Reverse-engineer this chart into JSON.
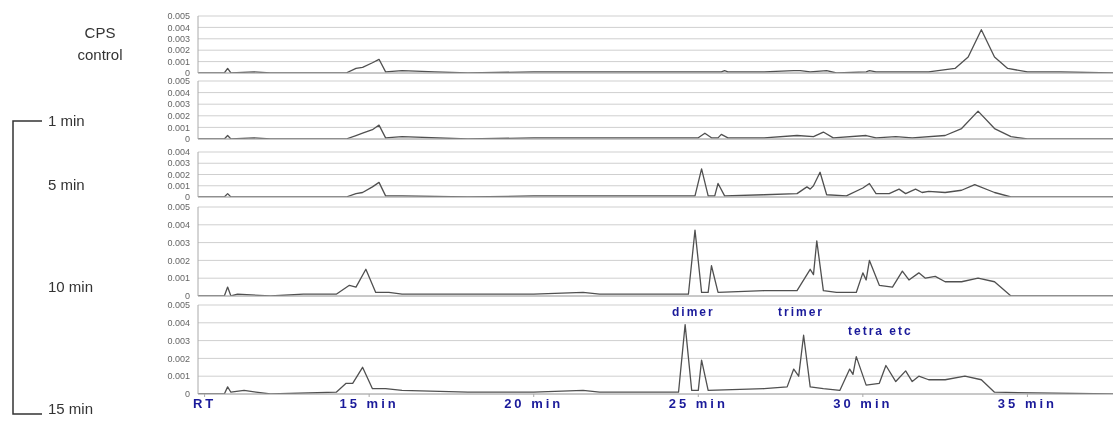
{
  "chart_data": [
    {
      "type": "line",
      "title": "CPS control",
      "color": "#505050",
      "xlim": [
        9.8,
        37.6
      ],
      "ylim": [
        0,
        0.005
      ],
      "yticks": [
        0,
        0.001,
        0.002,
        0.003,
        0.004,
        0.005
      ],
      "grid": "y",
      "tick_labels": "y",
      "x": [
        9.8,
        10.6,
        10.7,
        10.8,
        11.5,
        12,
        13,
        14.3,
        14.6,
        14.8,
        15.1,
        15.3,
        15.5,
        16,
        17,
        18,
        20,
        22,
        24,
        25.7,
        25.8,
        25.9,
        27,
        27.9,
        28.1,
        28.4,
        28.9,
        29.2,
        30.1,
        30.2,
        30.4,
        31,
        32,
        32.8,
        33.2,
        33.6,
        34,
        34.4,
        35,
        36,
        37.6
      ],
      "values": [
        0,
        0,
        0.0004,
        0,
        0.0001,
        0,
        0,
        0,
        0.0004,
        0.0005,
        0.0009,
        0.0012,
        0.0001,
        0.0002,
        0.0001,
        0,
        0.0001,
        0.0001,
        0.0001,
        0.0001,
        0.0002,
        0.0001,
        0.0001,
        0.0002,
        0.0002,
        0.0001,
        0.0002,
        0,
        0.0001,
        0.0002,
        0.0001,
        0.0001,
        0.0001,
        0.0004,
        0.0014,
        0.0038,
        0.0014,
        0.0004,
        0.0001,
        0.0001,
        0
      ]
    },
    {
      "type": "line",
      "title": "1 min",
      "color": "#505050",
      "xlim": [
        9.8,
        37.6
      ],
      "ylim": [
        0,
        0.005
      ],
      "yticks": [
        0,
        0.001,
        0.002,
        0.003,
        0.004,
        0.005
      ],
      "grid": "y",
      "tick_labels": "y",
      "x": [
        9.8,
        10.6,
        10.7,
        10.8,
        11.5,
        12,
        14.3,
        14.6,
        14.8,
        15.1,
        15.3,
        15.5,
        16,
        18,
        20,
        22,
        24,
        25,
        25.2,
        25.4,
        25.6,
        25.7,
        25.9,
        27,
        28,
        28.5,
        28.8,
        29.1,
        30.1,
        30.4,
        31,
        31.5,
        32.5,
        33,
        33.5,
        34,
        34.5,
        35,
        37.6
      ],
      "values": [
        0,
        0,
        0.0003,
        0,
        0.0001,
        0,
        0,
        0.0003,
        0.0005,
        0.0008,
        0.0012,
        0.0001,
        0.0002,
        0,
        0.0001,
        0.0001,
        0.0001,
        0.0001,
        0.0005,
        0.0001,
        0.0001,
        0.0004,
        0.0001,
        0.0001,
        0.0003,
        0.0002,
        0.0006,
        0.0001,
        0.0003,
        0.0001,
        0.0002,
        0.0001,
        0.0003,
        0.0009,
        0.0024,
        0.0009,
        0.0002,
        0,
        0
      ]
    },
    {
      "type": "line",
      "title": "5 min",
      "color": "#505050",
      "xlim": [
        9.8,
        37.6
      ],
      "ylim": [
        0,
        0.004
      ],
      "yticks": [
        0,
        0.001,
        0.002,
        0.003,
        0.004
      ],
      "grid": "y",
      "tick_labels": "y",
      "x": [
        9.8,
        10.6,
        10.7,
        10.8,
        12,
        14.3,
        14.6,
        14.8,
        15.1,
        15.3,
        15.5,
        16,
        18,
        20,
        22,
        24,
        24.9,
        25.1,
        25.3,
        25.5,
        25.6,
        25.8,
        27,
        28,
        28.3,
        28.4,
        28.5,
        28.7,
        28.9,
        29.5,
        30,
        30.2,
        30.4,
        30.8,
        31.1,
        31.3,
        31.6,
        31.8,
        32,
        32.5,
        33,
        33.4,
        34,
        34.5,
        37.6
      ],
      "values": [
        0,
        0,
        0.0003,
        0,
        0,
        0,
        0.0003,
        0.0004,
        0.0009,
        0.0013,
        0.0001,
        0.0001,
        0,
        0.0001,
        0.0001,
        0.0001,
        0.0001,
        0.0025,
        0.0001,
        0.0001,
        0.0012,
        0.0001,
        0.0002,
        0.0003,
        0.0009,
        0.0007,
        0.001,
        0.0022,
        0.0002,
        0.0001,
        0.0008,
        0.0012,
        0.0003,
        0.0003,
        0.0007,
        0.0003,
        0.0007,
        0.0004,
        0.0005,
        0.0004,
        0.0006,
        0.0011,
        0.0004,
        0,
        0
      ]
    },
    {
      "type": "line",
      "title": "10 min",
      "color": "#505050",
      "xlim": [
        9.8,
        37.6
      ],
      "ylim": [
        0,
        0.005
      ],
      "yticks": [
        0,
        0.001,
        0.002,
        0.003,
        0.004,
        0.005
      ],
      "grid": "y",
      "tick_labels": "y",
      "x": [
        9.8,
        10.6,
        10.7,
        10.8,
        11,
        12,
        13,
        14,
        14.4,
        14.6,
        14.9,
        15.2,
        15.6,
        16,
        18,
        20,
        21.5,
        22,
        24,
        24.7,
        24.9,
        25.1,
        25.3,
        25.4,
        25.6,
        27,
        28,
        28.4,
        28.5,
        28.6,
        28.8,
        29.2,
        29.8,
        30,
        30.1,
        30.2,
        30.5,
        30.9,
        31.2,
        31.4,
        31.7,
        31.9,
        32.2,
        32.5,
        33,
        33.5,
        34,
        34.5,
        37.6
      ],
      "values": [
        0,
        0,
        0.0005,
        0,
        0.0001,
        0,
        0.0001,
        0.0001,
        0.0006,
        0.0005,
        0.0015,
        0.0002,
        0.0002,
        0.0001,
        0.0001,
        0.0001,
        0.0002,
        0.0001,
        0.0001,
        0.0001,
        0.0037,
        0.0002,
        0.0002,
        0.0017,
        0.0002,
        0.0003,
        0.0003,
        0.0015,
        0.0012,
        0.0031,
        0.0003,
        0.0002,
        0.0002,
        0.0013,
        0.0009,
        0.002,
        0.0006,
        0.0005,
        0.0014,
        0.0009,
        0.0013,
        0.001,
        0.0011,
        0.0008,
        0.0008,
        0.001,
        0.0008,
        0,
        0
      ]
    },
    {
      "type": "line",
      "title": "15 min",
      "color": "#505050",
      "xlim": [
        9.8,
        37.6
      ],
      "xticks": [
        {
          "value": 10,
          "label": "RT"
        },
        {
          "value": 15,
          "label": "15 min"
        },
        {
          "value": 20,
          "label": "20 min"
        },
        {
          "value": 25,
          "label": "25 min"
        },
        {
          "value": 30,
          "label": "30 min"
        },
        {
          "value": 35,
          "label": "35 min"
        }
      ],
      "ylim": [
        0,
        0.005
      ],
      "yticks": [
        0,
        0.001,
        0.002,
        0.003,
        0.004,
        0.005
      ],
      "grid": "y",
      "annotations": [
        "dimer",
        "trimer",
        "tetra etc"
      ],
      "x": [
        9.8,
        10.6,
        10.7,
        10.8,
        11.2,
        12,
        14,
        14.3,
        14.5,
        14.8,
        15.1,
        15.5,
        16,
        18,
        20,
        21.5,
        22,
        24,
        24.4,
        24.6,
        24.8,
        25,
        25.1,
        25.3,
        27,
        27.7,
        27.9,
        28.05,
        28.2,
        28.4,
        28.8,
        29.3,
        29.6,
        29.7,
        29.8,
        30.1,
        30.5,
        30.7,
        31,
        31.3,
        31.5,
        31.7,
        32,
        32.5,
        33.1,
        33.6,
        34,
        37.6
      ],
      "values": [
        0,
        0,
        0.0004,
        0.0001,
        0.0002,
        0,
        0.0001,
        0.0006,
        0.0006,
        0.0015,
        0.0003,
        0.0003,
        0.0002,
        0.0001,
        0.0001,
        0.0002,
        0.0001,
        0.0001,
        0.0001,
        0.0039,
        0.0002,
        0.0002,
        0.0019,
        0.0002,
        0.0003,
        0.0004,
        0.0014,
        0.001,
        0.0033,
        0.0004,
        0.0003,
        0.0002,
        0.0014,
        0.0011,
        0.0021,
        0.0005,
        0.0006,
        0.0016,
        0.0007,
        0.0013,
        0.0007,
        0.001,
        0.0008,
        0.0008,
        0.001,
        0.0008,
        0.0001,
        0
      ]
    }
  ]
}
